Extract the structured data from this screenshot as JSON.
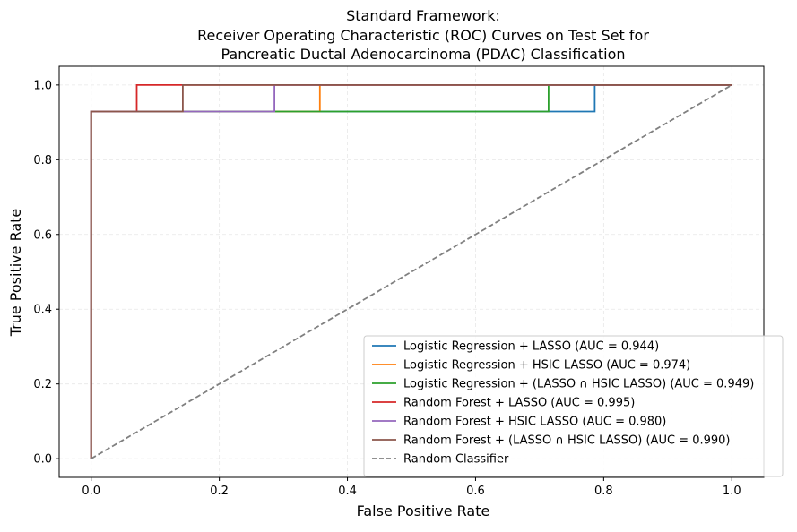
{
  "chart_data": {
    "type": "line",
    "title_lines": [
      "Standard Framework:",
      "Receiver Operating Characteristic (ROC) Curves on Test Set for",
      "Pancreatic Ductal Adenocarcinoma (PDAC) Classification"
    ],
    "xlabel": "False Positive Rate",
    "ylabel": "True Positive Rate",
    "xlim": [
      -0.05,
      1.05
    ],
    "ylim": [
      -0.05,
      1.05
    ],
    "xticks": [
      "0.0",
      "0.2",
      "0.4",
      "0.6",
      "0.8",
      "1.0"
    ],
    "yticks": [
      "0.0",
      "0.2",
      "0.4",
      "0.6",
      "0.8",
      "1.0"
    ],
    "grid": true,
    "legend_position": "bottom-right",
    "series": [
      {
        "name": "Logistic Regression + LASSO (AUC = 0.944)",
        "color": "#1f77b4",
        "dashed": false,
        "x": [
          0,
          0,
          0.071,
          0.071,
          0.143,
          0.143,
          0.786,
          0.786,
          1.0
        ],
        "y": [
          0,
          0.929,
          0.929,
          0.929,
          0.929,
          0.929,
          0.929,
          1.0,
          1.0
        ]
      },
      {
        "name": "Logistic Regression + HSIC LASSO (AUC = 0.974)",
        "color": "#ff7f0e",
        "dashed": false,
        "x": [
          0,
          0,
          0.357,
          0.357,
          1.0
        ],
        "y": [
          0,
          0.929,
          0.929,
          1.0,
          1.0
        ]
      },
      {
        "name": "Logistic Regression + (LASSO ∩ HSIC LASSO) (AUC = 0.949)",
        "color": "#2ca02c",
        "dashed": false,
        "x": [
          0,
          0,
          0.714,
          0.714,
          1.0
        ],
        "y": [
          0,
          0.929,
          0.929,
          1.0,
          1.0
        ]
      },
      {
        "name": "Random Forest + LASSO (AUC = 0.995)",
        "color": "#d62728",
        "dashed": false,
        "x": [
          0,
          0,
          0.071,
          0.071,
          1.0
        ],
        "y": [
          0,
          0.929,
          0.929,
          1.0,
          1.0
        ]
      },
      {
        "name": "Random Forest + HSIC LASSO (AUC = 0.980)",
        "color": "#9467bd",
        "dashed": false,
        "x": [
          0,
          0,
          0.286,
          0.286,
          1.0
        ],
        "y": [
          0,
          0.929,
          0.929,
          1.0,
          1.0
        ]
      },
      {
        "name": "Random Forest + (LASSO ∩ HSIC LASSO) (AUC = 0.990)",
        "color": "#8c564b",
        "dashed": false,
        "x": [
          0,
          0,
          0.143,
          0.143,
          1.0
        ],
        "y": [
          0,
          0.929,
          0.929,
          1.0,
          1.0
        ]
      },
      {
        "name": "Random Classifier",
        "color": "#808080",
        "dashed": true,
        "x": [
          0,
          1
        ],
        "y": [
          0,
          1
        ]
      }
    ]
  }
}
